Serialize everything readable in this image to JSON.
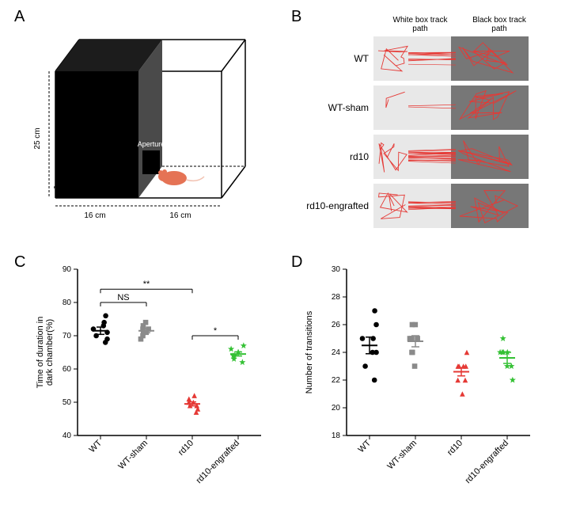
{
  "panelLabels": {
    "A": "A",
    "B": "B",
    "C": "C",
    "D": "D"
  },
  "box": {
    "height_label": "25 cm",
    "depth_label": "16 cm",
    "width_black": "16 cm",
    "width_white": "16 cm",
    "aperture": "Aperture"
  },
  "tracks": {
    "header_white": "White box track path",
    "header_black": "Black box track path",
    "rows": [
      {
        "label": "WT"
      },
      {
        "label": "WT-sham"
      },
      {
        "label": "rd10"
      },
      {
        "label": "rd10-engrafted"
      }
    ],
    "path_color": "#e53935",
    "white_bg": "#e8e8e8",
    "black_bg": "#777777"
  },
  "chartC": {
    "ylabel": "Time of duration in\ndark chamber(%)",
    "ylim": [
      40,
      90
    ],
    "ytick_step": 10,
    "groups": [
      "WT",
      "WT-sham",
      "rd10",
      "rd10-engrafted"
    ],
    "colors": [
      "#000000",
      "#8a8a8a",
      "#e53935",
      "#35c135"
    ],
    "markers": [
      "circle",
      "square",
      "triangle",
      "star"
    ],
    "data": [
      [
        72,
        73,
        69,
        70,
        71,
        74,
        68,
        76
      ],
      [
        72,
        71,
        73,
        70,
        69,
        74,
        71,
        72
      ],
      [
        49,
        50,
        51,
        48,
        47,
        52,
        50,
        49
      ],
      [
        64,
        65,
        63,
        66,
        62,
        67,
        64,
        65
      ]
    ],
    "means": [
      71.5,
      71.5,
      49.5,
      64.5
    ],
    "sem": [
      1.1,
      0.6,
      0.6,
      0.6
    ],
    "sig": [
      {
        "from": 0,
        "to": 1,
        "label": "NS",
        "y": 80
      },
      {
        "from": 0,
        "to": 2,
        "label": "**",
        "y": 84
      },
      {
        "from": 2,
        "to": 3,
        "label": "*",
        "y": 70
      }
    ]
  },
  "chartD": {
    "ylabel": "Number of transitions",
    "ylim": [
      18,
      30
    ],
    "ytick_step": 2,
    "groups": [
      "WT",
      "WT-sham",
      "rd10",
      "rd10-engrafted"
    ],
    "colors": [
      "#000000",
      "#8a8a8a",
      "#e53935",
      "#35c135"
    ],
    "markers": [
      "circle",
      "square",
      "triangle",
      "star"
    ],
    "data": [
      [
        25,
        24,
        26,
        23,
        24,
        25,
        22,
        27
      ],
      [
        25,
        24,
        26,
        24,
        25,
        23,
        26,
        25
      ],
      [
        23,
        22,
        23,
        24,
        22,
        23,
        21,
        23
      ],
      [
        24,
        23,
        25,
        24,
        23,
        22,
        24,
        24
      ]
    ],
    "means": [
      24.5,
      24.8,
      22.6,
      23.6
    ],
    "sem": [
      0.6,
      0.4,
      0.3,
      0.4
    ]
  },
  "style": {
    "axis_color": "#000000",
    "background": "#ffffff",
    "tick_fontsize": 10,
    "label_fontsize": 11
  }
}
